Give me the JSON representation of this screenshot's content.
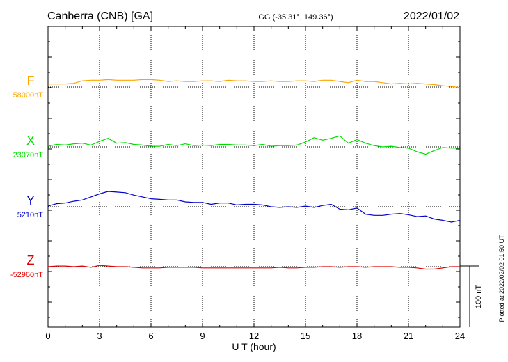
{
  "header": {
    "station": "Canberra (CNB)  [GA]",
    "coords": "GG (-35.31°, 149.36°)",
    "date": "2022/01/02"
  },
  "footer": {
    "plotted_note": "Plotted at 2022/02/02 01:50 UT"
  },
  "chart_data": {
    "type": "line",
    "title": "Canberra (CNB)  [GA]",
    "xlabel": "U T (hour)",
    "xlim": [
      0,
      24
    ],
    "xticks": [
      0,
      3,
      6,
      9,
      12,
      15,
      18,
      21,
      24
    ],
    "grid": "dotted vertical every 3 h; dotted baseline per component",
    "scale_bar": {
      "label": "100 nT",
      "value_nT": 100
    },
    "colors": {
      "F": "#ffa500",
      "X": "#00dd00",
      "Y": "#0000cc",
      "Z": "#dd0000"
    },
    "series": [
      {
        "name": "F",
        "baseline_label": "58000nT",
        "baseline_nT": 58000,
        "x": [
          0,
          0.5,
          1,
          1.5,
          2,
          2.5,
          3,
          3.5,
          4,
          4.5,
          5,
          5.5,
          6,
          6.5,
          7,
          7.5,
          8,
          8.5,
          9,
          9.5,
          10,
          10.5,
          11,
          11.5,
          12,
          12.5,
          13,
          13.5,
          14,
          14.5,
          15,
          15.5,
          16,
          16.5,
          17,
          17.5,
          18,
          18.5,
          19,
          19.5,
          20,
          20.5,
          21,
          21.5,
          22,
          22.5,
          23,
          23.5,
          24
        ],
        "values": [
          58005,
          58005,
          58005,
          58006,
          58010,
          58011,
          58011,
          58012,
          58011,
          58011,
          58011,
          58012,
          58012,
          58011,
          58009,
          58010,
          58009,
          58009,
          58010,
          58010,
          58009,
          58011,
          58010,
          58010,
          58009,
          58009,
          58010,
          58009,
          58009,
          58010,
          58010,
          58009,
          58011,
          58011,
          58009,
          58007,
          58011,
          58009,
          58009,
          58007,
          58005,
          58006,
          58005,
          58006,
          58005,
          58004,
          58002,
          58001,
          57999
        ]
      },
      {
        "name": "X",
        "baseline_label": "23070nT",
        "baseline_nT": 23070,
        "x": [
          0,
          0.5,
          1,
          1.5,
          2,
          2.5,
          3,
          3.5,
          4,
          4.5,
          5,
          5.5,
          6,
          6.5,
          7,
          7.5,
          8,
          8.5,
          9,
          9.5,
          10,
          10.5,
          11,
          11.5,
          12,
          12.5,
          13,
          13.5,
          14,
          14.5,
          15,
          15.5,
          16,
          16.5,
          17,
          17.5,
          18,
          18.5,
          19,
          19.5,
          20,
          20.5,
          21,
          21.5,
          22,
          22.5,
          23,
          23.5,
          24
        ],
        "values": [
          23071,
          23074,
          23073,
          23075,
          23076,
          23073,
          23079,
          23084,
          23076,
          23077,
          23074,
          23073,
          23071,
          23071,
          23074,
          23072,
          23075,
          23072,
          23073,
          23072,
          23074,
          23074,
          23073,
          23073,
          23072,
          23074,
          23071,
          23072,
          23072,
          23073,
          23078,
          23085,
          23081,
          23084,
          23088,
          23076,
          23082,
          23076,
          23072,
          23070,
          23071,
          23069,
          23068,
          23062,
          23058,
          23064,
          23069,
          23068,
          23068
        ]
      },
      {
        "name": "Y",
        "baseline_label": "5210nT",
        "baseline_nT": 5210,
        "x": [
          0,
          0.5,
          1,
          1.5,
          2,
          2.5,
          3,
          3.5,
          4,
          4.5,
          5,
          5.5,
          6,
          6.5,
          7,
          7.5,
          8,
          8.5,
          9,
          9.5,
          10,
          10.5,
          11,
          11.5,
          12,
          12.5,
          13,
          13.5,
          14,
          14.5,
          15,
          15.5,
          16,
          16.5,
          17,
          17.5,
          18,
          18.5,
          19,
          19.5,
          20,
          20.5,
          21,
          21.5,
          22,
          22.5,
          23,
          23.5,
          24
        ],
        "values": [
          5211,
          5215,
          5216,
          5219,
          5221,
          5226,
          5231,
          5235,
          5234,
          5233,
          5229,
          5226,
          5223,
          5222,
          5221,
          5221,
          5218,
          5217,
          5217,
          5214,
          5216,
          5216,
          5213,
          5214,
          5214,
          5213,
          5210,
          5209,
          5210,
          5209,
          5211,
          5209,
          5212,
          5214,
          5206,
          5205,
          5208,
          5198,
          5196,
          5196,
          5198,
          5199,
          5197,
          5194,
          5195,
          5190,
          5188,
          5185,
          5188
        ]
      },
      {
        "name": "Z",
        "baseline_label": "-52960nT",
        "baseline_nT": -52960,
        "x": [
          0,
          0.5,
          1,
          1.5,
          2,
          2.5,
          3,
          3.5,
          4,
          4.5,
          5,
          5.5,
          6,
          6.5,
          7,
          7.5,
          8,
          8.5,
          9,
          9.5,
          10,
          10.5,
          11,
          11.5,
          12,
          12.5,
          13,
          13.5,
          14,
          14.5,
          15,
          15.5,
          16,
          16.5,
          17,
          17.5,
          18,
          18.5,
          19,
          19.5,
          20,
          20.5,
          21,
          21.5,
          22,
          22.5,
          23,
          23.5,
          24
        ],
        "values": [
          -52960,
          -52959,
          -52959,
          -52960,
          -52959,
          -52961,
          -52958,
          -52959,
          -52960,
          -52960,
          -52961,
          -52962,
          -52962,
          -52962,
          -52961,
          -52961,
          -52961,
          -52961,
          -52962,
          -52962,
          -52962,
          -52962,
          -52962,
          -52962,
          -52962,
          -52962,
          -52962,
          -52961,
          -52962,
          -52962,
          -52961,
          -52961,
          -52960,
          -52960,
          -52961,
          -52960,
          -52960,
          -52961,
          -52960,
          -52960,
          -52960,
          -52961,
          -52961,
          -52962,
          -52964,
          -52964,
          -52962,
          -52960,
          -52960
        ]
      }
    ]
  }
}
